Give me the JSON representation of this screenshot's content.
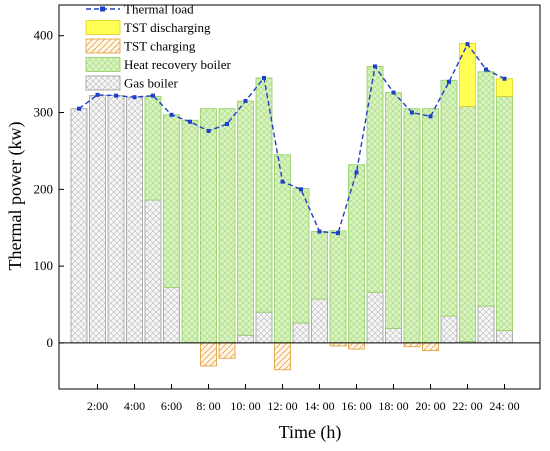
{
  "chart_data": {
    "type": "bar",
    "xlabel": "Time (h)",
    "ylabel": "Thermal power (kw)",
    "ylim": [
      -60,
      440
    ],
    "yticks": [
      0,
      100,
      200,
      300,
      400
    ],
    "categories": [
      1,
      2,
      3,
      4,
      5,
      6,
      7,
      8,
      9,
      10,
      11,
      12,
      13,
      14,
      15,
      16,
      17,
      18,
      19,
      20,
      21,
      22,
      23,
      24
    ],
    "x_tick_labels": [
      "2:00",
      "4:00",
      "6:00",
      "8: 00",
      "10: 00",
      "12: 00",
      "14: 00",
      "16: 00",
      "18: 00",
      "20: 00",
      "22: 00",
      "24: 00"
    ],
    "legend_position": "top-left",
    "series": [
      {
        "name": "Gas boiler",
        "kind": "bar",
        "values": [
          305,
          322,
          322,
          320,
          186,
          72,
          0,
          0,
          0,
          10,
          40,
          0,
          26,
          57,
          0,
          0,
          66,
          19,
          0,
          0,
          35,
          2,
          48,
          16
        ],
        "color": "#b4b4b4"
      },
      {
        "name": "Heat recovery boiler",
        "kind": "bar",
        "values": [
          0,
          0,
          0,
          0,
          135,
          225,
          290,
          305,
          305,
          305,
          305,
          245,
          175,
          88,
          146,
          232,
          294,
          307,
          305,
          305,
          307,
          306,
          305,
          305
        ],
        "color": "#a3d977"
      },
      {
        "name": "TST discharging",
        "kind": "bar",
        "values": [
          0,
          0,
          0,
          0,
          0,
          0,
          0,
          0,
          0,
          0,
          0,
          0,
          0,
          0,
          0,
          0,
          0,
          0,
          0,
          0,
          0,
          82,
          0,
          23
        ],
        "color": "#ffff55"
      },
      {
        "name": "TST charging",
        "kind": "bar",
        "values": [
          0,
          0,
          0,
          0,
          0,
          0,
          0,
          -30,
          -20,
          0,
          0,
          -35,
          0,
          0,
          -4,
          -8,
          0,
          0,
          -5,
          -10,
          0,
          0,
          0,
          0
        ],
        "color": "#f0a830"
      },
      {
        "name": "Thermal load",
        "kind": "line",
        "values": [
          305,
          323,
          322,
          320,
          322,
          297,
          288,
          276,
          285,
          315,
          345,
          210,
          200,
          145,
          143,
          222,
          360,
          326,
          300,
          295,
          340,
          389,
          356,
          344
        ],
        "color": "#1f3fc8"
      }
    ]
  }
}
